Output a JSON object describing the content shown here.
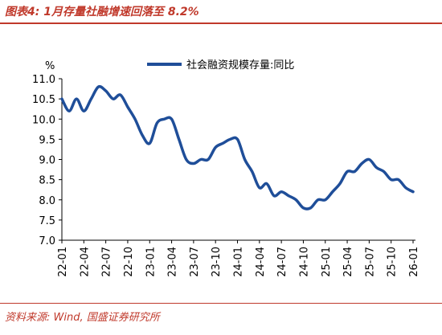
{
  "figure": {
    "title": "图表4:  1月存量社融增速回落至 8.2%",
    "source": "资料来源:  Wind,  国盛证券研究所",
    "title_color": "#c0392b",
    "line_color": "#1f4e99"
  },
  "chart_data": {
    "type": "line",
    "title": "",
    "xlabel": "",
    "ylabel": "%",
    "ylim": [
      7.0,
      11.0
    ],
    "yticks": [
      "7.0",
      "7.5",
      "8.0",
      "8.5",
      "9.0",
      "9.5",
      "10.0",
      "10.5",
      "11.0"
    ],
    "xticks": [
      "22-01",
      "22-04",
      "22-07",
      "22-10",
      "23-01",
      "23-04",
      "23-07",
      "23-10",
      "24-01",
      "24-04",
      "24-07",
      "24-10",
      "25-01",
      "25-04",
      "25-07",
      "25-10",
      "26-01"
    ],
    "legend_position": "top-center",
    "grid": false,
    "x": [
      "22-01",
      "22-02",
      "22-03",
      "22-04",
      "22-05",
      "22-06",
      "22-07",
      "22-08",
      "22-09",
      "22-10",
      "22-11",
      "22-12",
      "23-01",
      "23-02",
      "23-03",
      "23-04",
      "23-05",
      "23-06",
      "23-07",
      "23-08",
      "23-09",
      "23-10",
      "23-11",
      "23-12",
      "24-01",
      "24-02",
      "24-03",
      "24-04",
      "24-05",
      "24-06",
      "24-07",
      "24-08",
      "24-09",
      "24-10",
      "24-11",
      "24-12",
      "25-01",
      "25-02",
      "25-03",
      "25-04",
      "25-05",
      "25-06",
      "25-07",
      "25-08",
      "25-09",
      "25-10",
      "25-11",
      "25-12",
      "26-01"
    ],
    "series": [
      {
        "name": "社会融资规模存量:同比",
        "values": [
          10.5,
          10.2,
          10.5,
          10.2,
          10.5,
          10.8,
          10.7,
          10.5,
          10.6,
          10.3,
          10.0,
          9.6,
          9.4,
          9.9,
          10.0,
          10.0,
          9.5,
          9.0,
          8.9,
          9.0,
          9.0,
          9.3,
          9.4,
          9.5,
          9.5,
          9.0,
          8.7,
          8.3,
          8.4,
          8.1,
          8.2,
          8.1,
          8.0,
          7.8,
          7.8,
          8.0,
          8.0,
          8.2,
          8.4,
          8.7,
          8.7,
          8.9,
          9.0,
          8.8,
          8.7,
          8.5,
          8.5,
          8.3,
          8.2
        ]
      }
    ]
  }
}
